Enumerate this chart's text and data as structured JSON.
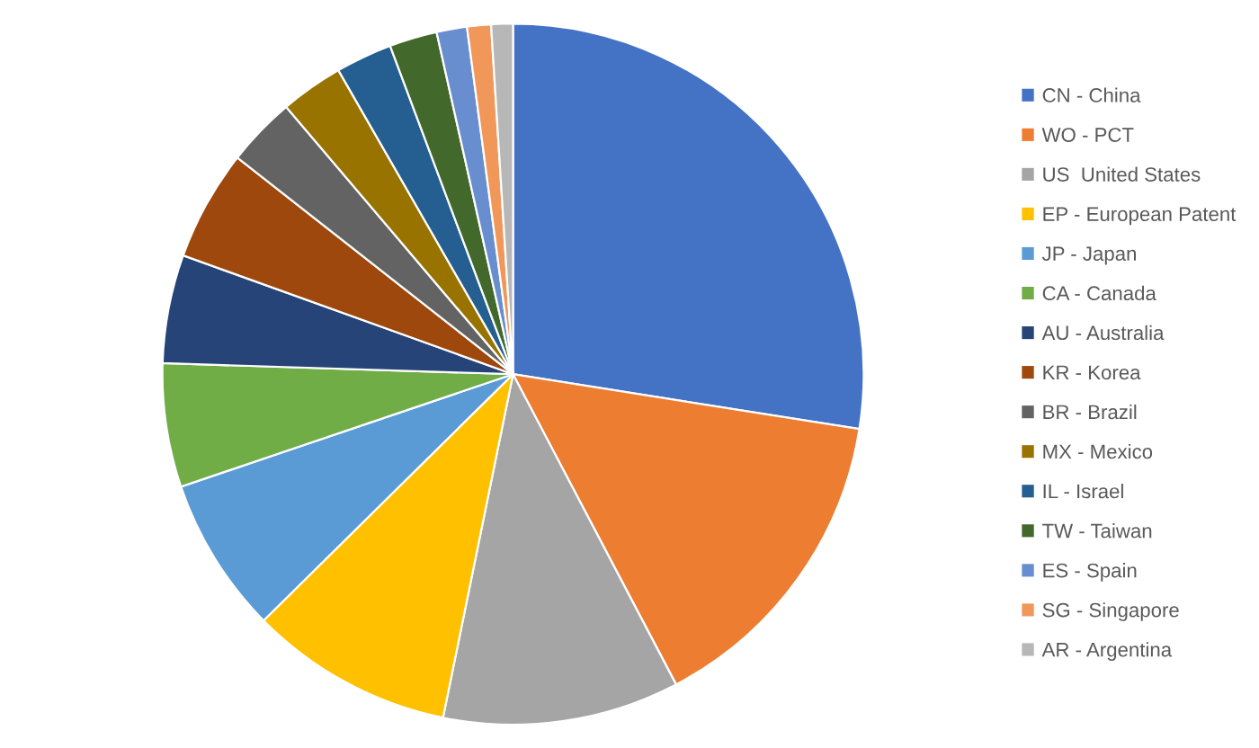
{
  "chart_data": {
    "type": "pie",
    "categories": [
      "CN - China",
      "WO - PCT",
      "US  United States",
      "EP - European Patent",
      "JP - Japan",
      "CA - Canada",
      "AU - Australia",
      "KR - Korea",
      "BR - Brazil",
      "MX - Mexico",
      "IL - Israel",
      "TW - Taiwan",
      "ES - Spain",
      "SG - Singapore",
      "AR - Argentina"
    ],
    "values": [
      27.5,
      14.8,
      10.9,
      9.4,
      7.2,
      5.7,
      5.0,
      5.1,
      3.2,
      2.9,
      2.6,
      2.2,
      1.4,
      1.1,
      1.0
    ],
    "colors": [
      "#4472c4",
      "#ed7d31",
      "#a5a5a5",
      "#ffc000",
      "#5b9bd5",
      "#70ad47",
      "#264478",
      "#9e480e",
      "#636363",
      "#997300",
      "#255e91",
      "#43682b",
      "#698ed0",
      "#f1975a",
      "#b7b7b7"
    ],
    "legend": "right"
  }
}
